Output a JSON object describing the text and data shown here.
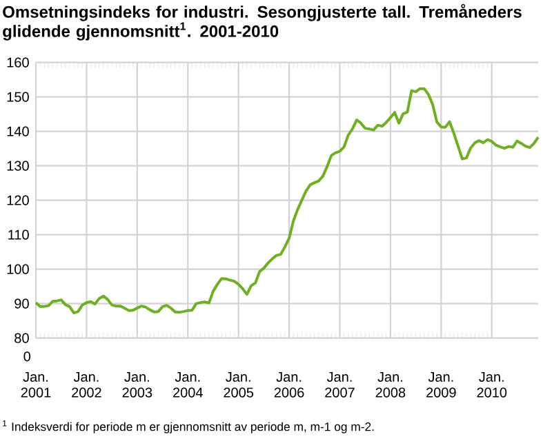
{
  "chart_data": {
    "type": "line",
    "title": "Omsetningsindeks for industri. Sesongjusterte tall. Tremåneders glidende gjennomsnitt$^{1}$. 2001-2010",
    "annotations": [
      "0",
      "$^{1}$ Indeksverdi for periode m er gjennomsnitt av periode m, m-1 og m-2."
    ],
    "xlim": [
      "2001-01",
      "2010-12"
    ],
    "xticks": [
      {
        "value": "2001-01",
        "label": "Jan. 2001"
      },
      {
        "value": "2002-01",
        "label": "Jan. 2002"
      },
      {
        "value": "2003-01",
        "label": "Jan. 2003"
      },
      {
        "value": "2004-01",
        "label": "Jan. 2004"
      },
      {
        "value": "2005-01",
        "label": "Jan. 2005"
      },
      {
        "value": "2006-01",
        "label": "Jan. 2006"
      },
      {
        "value": "2007-01",
        "label": "Jan. 2007"
      },
      {
        "value": "2008-01",
        "label": "Jan. 2008"
      },
      {
        "value": "2009-01",
        "label": "Jan. 2009"
      },
      {
        "value": "2010-01",
        "label": "Jan. 2010"
      }
    ],
    "ylim": [
      80,
      160
    ],
    "yticks": [
      80,
      90,
      100,
      110,
      120,
      130,
      140,
      150,
      160
    ],
    "grid": true,
    "marker": "none",
    "line_style": "solid",
    "x": [
      "2001-01",
      "2001-02",
      "2001-03",
      "2001-04",
      "2001-05",
      "2001-06",
      "2001-07",
      "2001-08",
      "2001-09",
      "2001-10",
      "2001-11",
      "2001-12",
      "2002-01",
      "2002-02",
      "2002-03",
      "2002-04",
      "2002-05",
      "2002-06",
      "2002-07",
      "2002-08",
      "2002-09",
      "2002-10",
      "2002-11",
      "2002-12",
      "2003-01",
      "2003-02",
      "2003-03",
      "2003-04",
      "2003-05",
      "2003-06",
      "2003-07",
      "2003-08",
      "2003-09",
      "2003-10",
      "2003-11",
      "2003-12",
      "2004-01",
      "2004-02",
      "2004-03",
      "2004-04",
      "2004-05",
      "2004-06",
      "2004-07",
      "2004-08",
      "2004-09",
      "2004-10",
      "2004-11",
      "2004-12",
      "2005-01",
      "2005-02",
      "2005-03",
      "2005-04",
      "2005-05",
      "2005-06",
      "2005-07",
      "2005-08",
      "2005-09",
      "2005-10",
      "2005-11",
      "2005-12",
      "2006-01",
      "2006-02",
      "2006-03",
      "2006-04",
      "2006-05",
      "2006-06",
      "2006-07",
      "2006-08",
      "2006-09",
      "2006-10",
      "2006-11",
      "2006-12",
      "2007-01",
      "2007-02",
      "2007-03",
      "2007-04",
      "2007-05",
      "2007-06",
      "2007-07",
      "2007-08",
      "2007-09",
      "2007-10",
      "2007-11",
      "2007-12",
      "2008-01",
      "2008-02",
      "2008-03",
      "2008-04",
      "2008-05",
      "2008-06",
      "2008-07",
      "2008-08",
      "2008-09",
      "2008-10",
      "2008-11",
      "2008-12",
      "2009-01",
      "2009-02",
      "2009-03",
      "2009-04",
      "2009-05",
      "2009-06",
      "2009-07",
      "2009-08",
      "2009-09",
      "2009-10",
      "2009-11",
      "2009-12",
      "2010-01",
      "2010-02",
      "2010-03",
      "2010-04",
      "2010-05",
      "2010-06",
      "2010-07",
      "2010-08",
      "2010-09",
      "2010-10",
      "2010-11",
      "2010-12"
    ],
    "series": [
      {
        "color": "#6fae26",
        "values": [
          90.3,
          89.2,
          89.2,
          89.4,
          90.7,
          90.8,
          91.1,
          89.7,
          89.1,
          87.3,
          87.7,
          89.6,
          90.3,
          90.6,
          89.9,
          91.5,
          92.2,
          91.2,
          89.6,
          89.3,
          89.3,
          88.7,
          88.0,
          88.1,
          88.7,
          89.3,
          89.0,
          88.2,
          87.6,
          87.7,
          89.1,
          89.5,
          88.7,
          87.6,
          87.5,
          87.7,
          88.0,
          88.1,
          90.0,
          90.3,
          90.5,
          90.2,
          93.6,
          95.6,
          97.3,
          97.2,
          96.8,
          96.5,
          95.6,
          94.3,
          92.7,
          95.2,
          96.0,
          99.3,
          100.3,
          101.8,
          103.0,
          104.0,
          104.3,
          106.5,
          109.0,
          114.0,
          117.3,
          120.0,
          122.7,
          124.5,
          125.1,
          125.6,
          127.0,
          129.8,
          133.0,
          133.8,
          134.2,
          135.5,
          138.9,
          140.7,
          143.3,
          142.4,
          140.9,
          140.7,
          140.4,
          141.8,
          141.5,
          142.6,
          144.0,
          145.5,
          142.4,
          145.1,
          145.6,
          151.8,
          151.5,
          152.4,
          152.4,
          150.7,
          147.8,
          142.7,
          141.3,
          141.2,
          142.8,
          139.5,
          135.8,
          132.0,
          132.3,
          135.2,
          136.7,
          137.3,
          136.7,
          137.6,
          137.1,
          136.0,
          135.5,
          135.1,
          135.6,
          135.4,
          137.2,
          136.5,
          135.7,
          135.3,
          136.5,
          138.3
        ]
      }
    ]
  }
}
